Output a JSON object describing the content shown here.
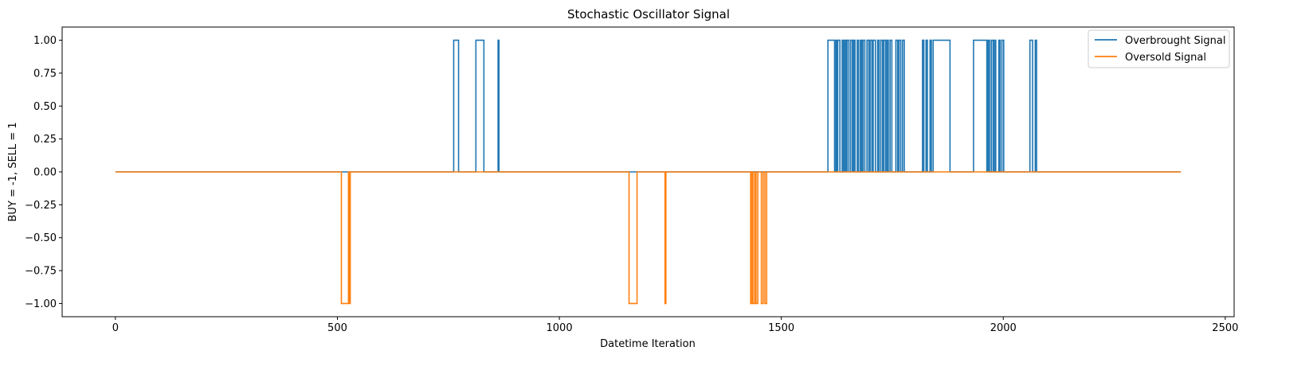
{
  "chart_data": {
    "type": "line",
    "title": "Stochastic Oscillator Signal",
    "xlabel": "Datetime Iteration",
    "ylabel": "BUY = -1, SELL = 1",
    "xlim": [
      -120,
      2520
    ],
    "ylim": [
      -1.1,
      1.1
    ],
    "xticks": [
      0,
      500,
      1000,
      1500,
      2000,
      2500
    ],
    "xtick_labels": [
      "0",
      "500",
      "1000",
      "1500",
      "2000",
      "2500"
    ],
    "yticks": [
      1.0,
      0.75,
      0.5,
      0.25,
      0.0,
      -0.25,
      -0.5,
      -0.75,
      -1.0
    ],
    "ytick_labels": [
      "1.00",
      "0.75",
      "0.50",
      "0.25",
      "0.00",
      "−0.25",
      "−0.50",
      "−0.75",
      "−1.00"
    ],
    "grid": false,
    "legend_position": "top-right",
    "x_range": [
      0,
      2400
    ],
    "series": [
      {
        "name": "Overbrought Signal",
        "color": "#1f77b4",
        "level": 1,
        "active_intervals": [
          [
            762,
            773
          ],
          [
            812,
            830
          ],
          [
            862,
            864
          ],
          [
            1605,
            1620
          ],
          [
            1623,
            1625
          ],
          [
            1627,
            1632
          ],
          [
            1637,
            1640
          ],
          [
            1643,
            1646
          ],
          [
            1648,
            1652
          ],
          [
            1656,
            1660
          ],
          [
            1663,
            1666
          ],
          [
            1671,
            1674
          ],
          [
            1678,
            1681
          ],
          [
            1684,
            1688
          ],
          [
            1693,
            1697
          ],
          [
            1700,
            1704
          ],
          [
            1707,
            1712
          ],
          [
            1717,
            1720
          ],
          [
            1724,
            1728
          ],
          [
            1731,
            1735
          ],
          [
            1738,
            1741
          ],
          [
            1745,
            1749
          ],
          [
            1758,
            1762
          ],
          [
            1765,
            1769
          ],
          [
            1773,
            1777
          ],
          [
            1818,
            1821
          ],
          [
            1826,
            1829
          ],
          [
            1835,
            1838
          ],
          [
            1842,
            1880
          ],
          [
            1933,
            1963
          ],
          [
            1966,
            1969
          ],
          [
            1973,
            1977
          ],
          [
            1980,
            1983
          ],
          [
            1990,
            1993
          ],
          [
            1997,
            2001
          ],
          [
            2060,
            2066
          ],
          [
            2072,
            2075
          ]
        ]
      },
      {
        "name": "Oversold Signal",
        "color": "#ff7f0e",
        "level": -1,
        "active_intervals": [
          [
            509,
            525
          ],
          [
            527,
            529
          ],
          [
            1157,
            1175
          ],
          [
            1238,
            1240
          ],
          [
            1431,
            1434
          ],
          [
            1436,
            1440
          ],
          [
            1443,
            1447
          ],
          [
            1455,
            1459
          ],
          [
            1463,
            1467
          ]
        ]
      }
    ]
  }
}
